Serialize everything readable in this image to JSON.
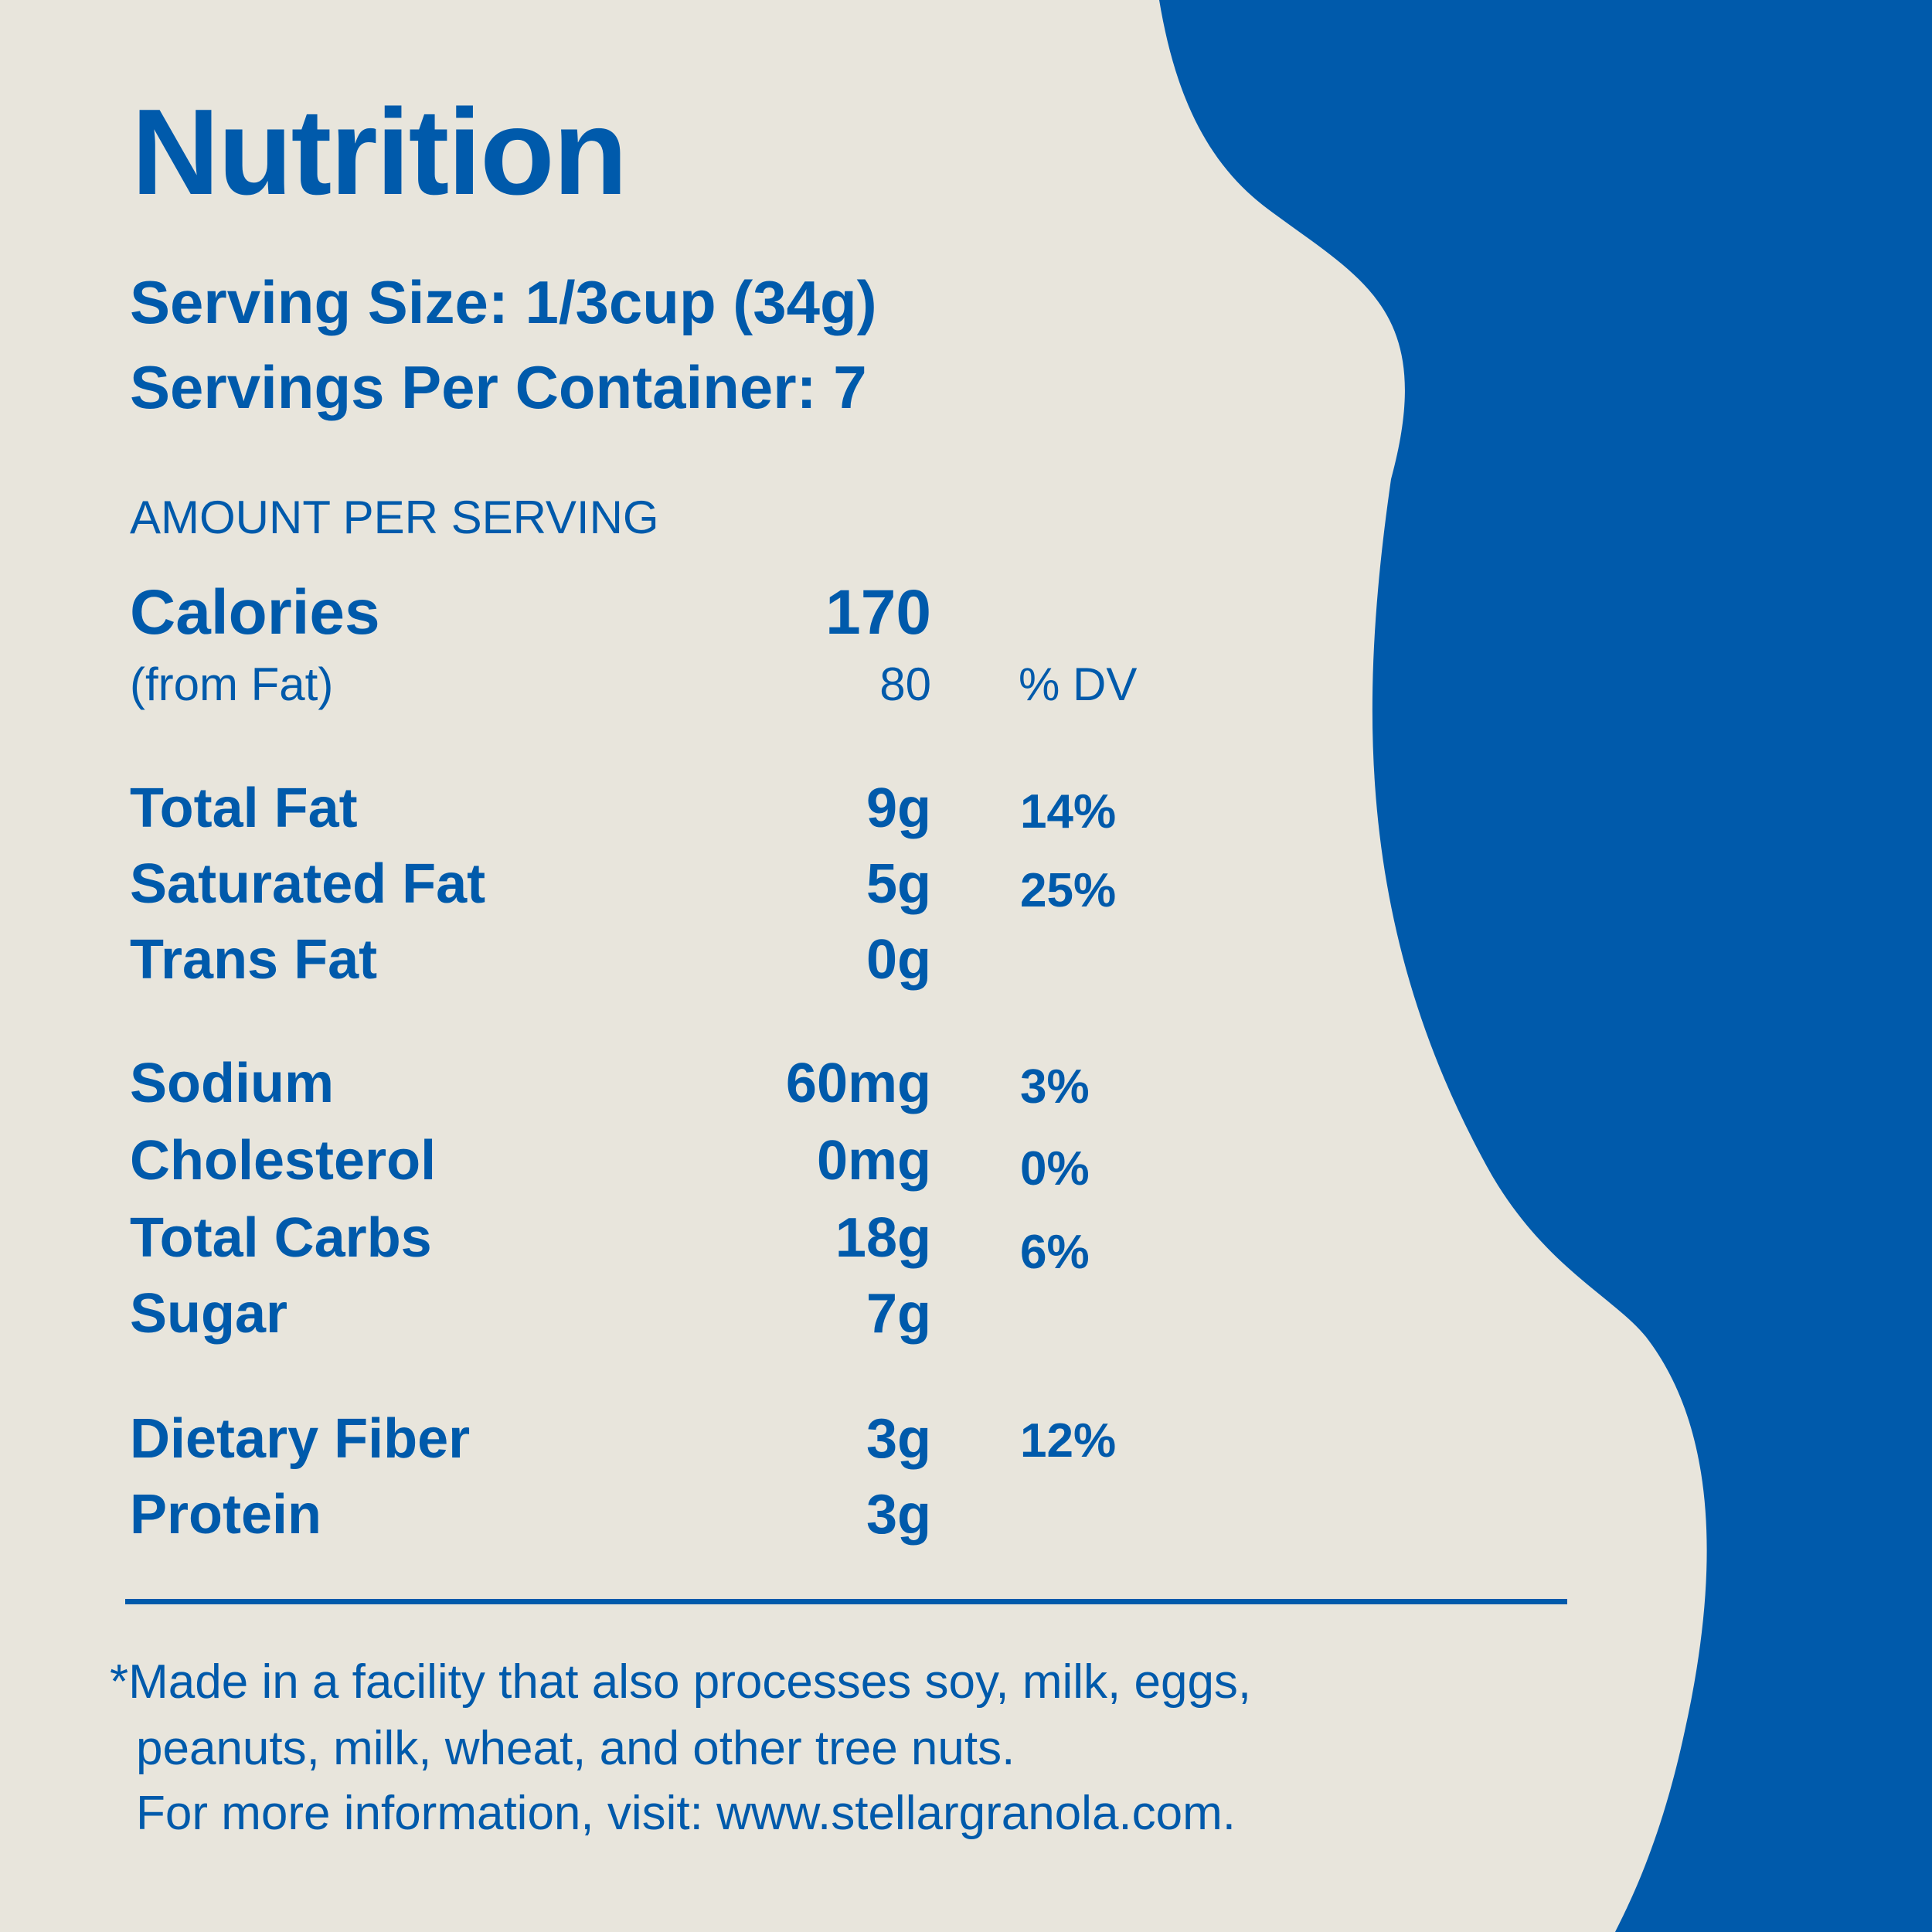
{
  "colors": {
    "background": "#e8e5dc",
    "accent": "#005aab"
  },
  "title": "Nutrition",
  "serving_size": "Serving Size: 1/3cup (34g)",
  "servings_per_container": "Servings Per Container: 7",
  "amount_heading": "AMOUNT PER SERVING",
  "calories": {
    "label": "Calories",
    "value": "170",
    "from_fat_label": "(from Fat)",
    "from_fat_value": "80"
  },
  "dv_header": "% DV",
  "nutrients": [
    {
      "label": "Total Fat",
      "value": "9g",
      "dv": "14%"
    },
    {
      "label": "Saturated Fat",
      "value": "5g",
      "dv": "25%"
    },
    {
      "label": "Trans Fat",
      "value": "0g",
      "dv": ""
    },
    {
      "label": "Sodium",
      "value": "60mg",
      "dv": "3%"
    },
    {
      "label": "Cholesterol",
      "value": "0mg",
      "dv": "0%"
    },
    {
      "label": "Total Carbs",
      "value": "18g",
      "dv": "6%"
    },
    {
      "label": "Sugar",
      "value": "7g",
      "dv": ""
    },
    {
      "label": "Dietary Fiber",
      "value": "3g",
      "dv": "12%"
    },
    {
      "label": "Protein",
      "value": "3g",
      "dv": ""
    }
  ],
  "footnote": [
    "*Made in a facility that also processes soy, milk, eggs,",
    "peanuts, milk, wheat, and other tree nuts.",
    "For more information, visit: www.stellargranola.com."
  ]
}
